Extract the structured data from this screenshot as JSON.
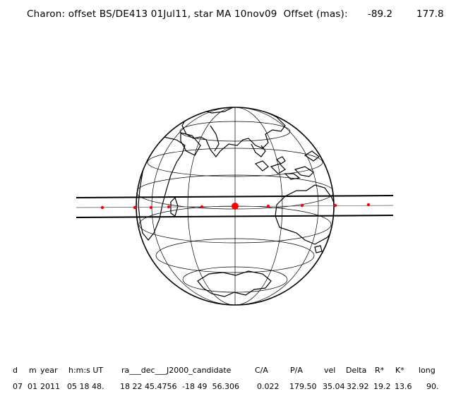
{
  "header": {
    "title": "Charon: offset BS/DE413 01Jul11, star MA 10nov09  Offset (mas):",
    "offset_x": "-89.2",
    "offset_y": "177.8"
  },
  "table": {
    "headers": {
      "d": "d",
      "m": "m",
      "year": "year",
      "hms": "h:m:s UT",
      "radec": "ra___dec___J2000_candidate",
      "ca": "C/A",
      "pa": "P/A",
      "vel": "vel",
      "delta": "Delta",
      "rstar": "R*",
      "kstar": "K*",
      "long": "long"
    },
    "values": {
      "d": "07",
      "m": "01",
      "year": "2011",
      "hms": "05 18 48.",
      "ra": "18 22 45.4756",
      "dec": "-18 49  56.306",
      "ca": "0.022",
      "pa": "179.50",
      "vel": "35.04",
      "delta": "32.92",
      "rstar": "19.2",
      "kstar": "13.6",
      "long": "90."
    }
  },
  "map": {
    "projection": "orthographic globe view of Earth (Indian Ocean, Australia, Antarctica)",
    "track_color": "#000000",
    "point_color": "#ff0000"
  }
}
